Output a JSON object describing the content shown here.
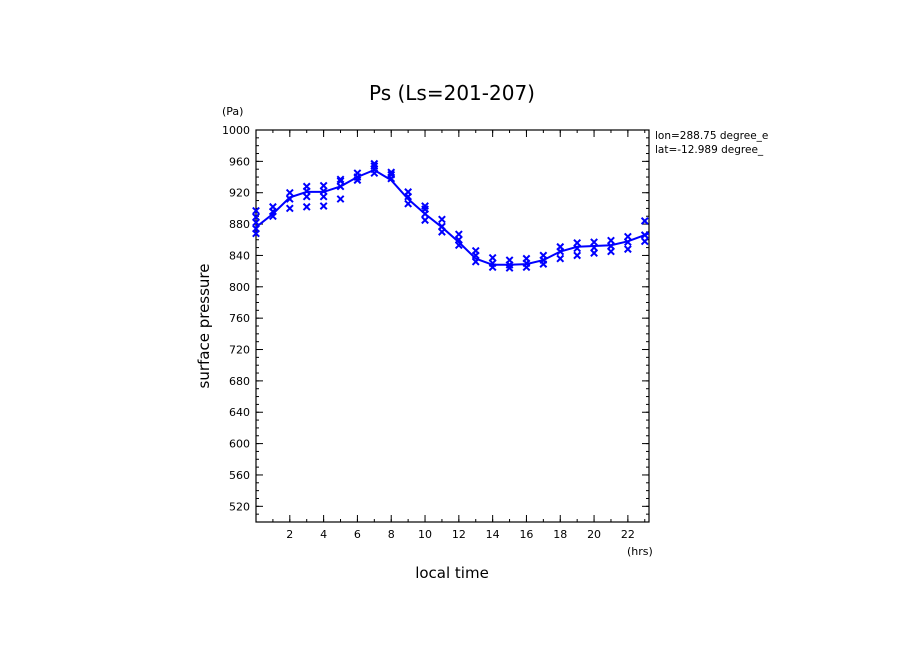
{
  "chart_data": {
    "type": "line",
    "title": "Ps (Ls=201-207)",
    "xlabel": "local time",
    "ylabel": "surface pressure",
    "x_unit": "(hrs)",
    "y_unit": "(Pa)",
    "annotations": [
      "lon=288.75 degree_e",
      "lat=-12.989 degree_"
    ],
    "xlim": [
      0,
      23.25
    ],
    "ylim": [
      500,
      1000
    ],
    "x_ticks": [
      2,
      4,
      6,
      8,
      10,
      12,
      14,
      16,
      18,
      20,
      22
    ],
    "y_ticks": [
      520,
      560,
      600,
      640,
      680,
      720,
      760,
      800,
      840,
      880,
      920,
      960,
      1000
    ],
    "grid": false,
    "series": [
      {
        "kind": "mean-line",
        "color": "#0000ff",
        "x": [
          0,
          1,
          2,
          3,
          4,
          5,
          6,
          7,
          8,
          9,
          10,
          11,
          12,
          13,
          14,
          15,
          16,
          17,
          18,
          19,
          20,
          21,
          22,
          23,
          23.25
        ],
        "y": [
          876,
          893,
          914,
          921,
          921,
          928,
          940,
          949,
          936,
          912,
          893,
          876,
          857,
          836,
          828,
          828,
          829,
          834,
          845,
          851,
          852,
          853,
          858,
          866,
          868
        ]
      },
      {
        "kind": "samples",
        "marker": "x",
        "color": "#0000ff",
        "x": [
          0,
          0,
          0,
          0,
          0,
          1,
          1,
          1,
          2,
          2,
          2,
          3,
          3,
          3,
          3,
          4,
          4,
          4,
          4,
          5,
          5,
          5,
          5,
          6,
          6,
          6,
          7,
          7,
          7,
          7,
          8,
          8,
          8,
          9,
          9,
          9,
          10,
          10,
          10,
          10,
          11,
          11,
          11,
          12,
          12,
          12,
          13,
          13,
          13,
          14,
          14,
          14,
          15,
          15,
          15,
          16,
          16,
          16,
          17,
          17,
          17,
          18,
          18,
          18,
          19,
          19,
          19,
          20,
          20,
          20,
          21,
          21,
          21,
          22,
          22,
          22,
          23,
          23,
          23
        ],
        "y": [
          868,
          874,
          882,
          889,
          897,
          890,
          896,
          902,
          900,
          912,
          920,
          902,
          915,
          922,
          928,
          903,
          915,
          922,
          929,
          912,
          928,
          935,
          937,
          936,
          940,
          945,
          945,
          950,
          954,
          957,
          938,
          943,
          946,
          906,
          915,
          921,
          885,
          893,
          899,
          903,
          870,
          877,
          886,
          853,
          860,
          867,
          832,
          840,
          846,
          825,
          830,
          837,
          824,
          828,
          834,
          825,
          830,
          836,
          829,
          834,
          840,
          836,
          845,
          851,
          840,
          849,
          856,
          843,
          850,
          857,
          845,
          852,
          859,
          848,
          857,
          864,
          858,
          866,
          884
        ]
      }
    ]
  }
}
